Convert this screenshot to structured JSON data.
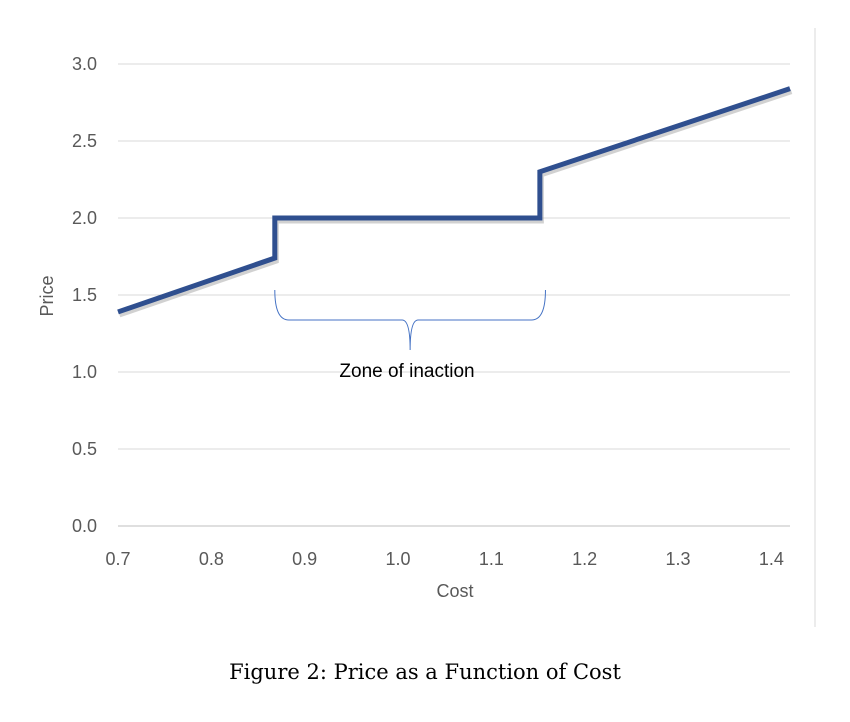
{
  "chart_data": {
    "type": "line",
    "xlabel": "Cost",
    "ylabel": "Price",
    "xlim": [
      0.7,
      1.42
    ],
    "ylim": [
      0.0,
      3.0
    ],
    "x_ticks": [
      "0.7",
      "0.8",
      "0.9",
      "1.0",
      "1.1",
      "1.2",
      "1.3",
      "1.4"
    ],
    "y_ticks": [
      "0.0",
      "0.5",
      "1.0",
      "1.5",
      "2.0",
      "2.5",
      "3.0"
    ],
    "grid": "horizontal",
    "series": [
      {
        "color": "#2f4f8f",
        "x": [
          0.7,
          0.868,
          0.868,
          1.152,
          1.152,
          1.42
        ],
        "y": [
          1.39,
          1.74,
          2.0,
          2.0,
          2.3,
          2.84
        ]
      }
    ],
    "annotation": {
      "text": "Zone of inaction",
      "x_start": 0.868,
      "x_end": 1.158,
      "type": "brace"
    }
  },
  "caption": "Figure 2: Price as a Function of Cost"
}
